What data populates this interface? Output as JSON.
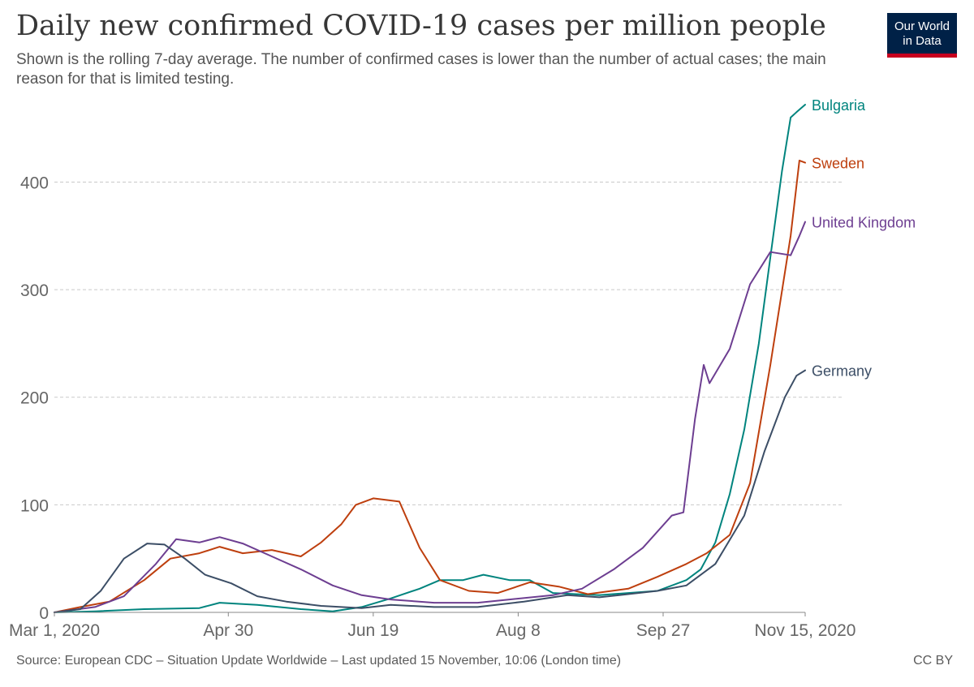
{
  "header": {
    "title": "Daily new confirmed COVID-19 cases per million people",
    "subtitle": "Shown is the rolling 7-day average. The number of confirmed cases is lower than the number of actual cases; the main reason for that is limited testing.",
    "logo_line1": "Our World",
    "logo_line2": "in Data"
  },
  "footer": {
    "source": "Source: European CDC – Situation Update Worldwide – Last updated 15 November, 10:06 (London time)",
    "license": "CC BY"
  },
  "chart_data": {
    "type": "line",
    "title": "Daily new confirmed COVID-19 cases per million people",
    "xlabel": "",
    "ylabel": "",
    "x_range": [
      "2020-03-01",
      "2020-11-15"
    ],
    "ylim": [
      0,
      475
    ],
    "y_ticks": [
      0,
      100,
      200,
      300,
      400
    ],
    "x_ticks": [
      {
        "date": "2020-03-01",
        "label": "Mar 1, 2020"
      },
      {
        "date": "2020-04-30",
        "label": "Apr 30"
      },
      {
        "date": "2020-06-19",
        "label": "Jun 19"
      },
      {
        "date": "2020-08-08",
        "label": "Aug 8"
      },
      {
        "date": "2020-09-27",
        "label": "Sep 27"
      },
      {
        "date": "2020-11-15",
        "label": "Nov 15, 2020"
      }
    ],
    "grid": "horizontal-dashed",
    "legend": "end-of-line labels",
    "series": [
      {
        "name": "Bulgaria",
        "color": "#00847e",
        "points": [
          [
            "2020-03-01",
            0
          ],
          [
            "2020-03-15",
            1
          ],
          [
            "2020-04-01",
            3
          ],
          [
            "2020-04-20",
            4
          ],
          [
            "2020-04-27",
            9
          ],
          [
            "2020-05-10",
            7
          ],
          [
            "2020-05-25",
            3
          ],
          [
            "2020-06-05",
            1
          ],
          [
            "2020-06-15",
            5
          ],
          [
            "2020-06-25",
            13
          ],
          [
            "2020-07-05",
            22
          ],
          [
            "2020-07-12",
            30
          ],
          [
            "2020-07-20",
            30
          ],
          [
            "2020-07-27",
            35
          ],
          [
            "2020-08-05",
            30
          ],
          [
            "2020-08-12",
            30
          ],
          [
            "2020-08-20",
            18
          ],
          [
            "2020-08-28",
            17
          ],
          [
            "2020-09-05",
            16
          ],
          [
            "2020-09-15",
            18
          ],
          [
            "2020-09-25",
            20
          ],
          [
            "2020-10-05",
            30
          ],
          [
            "2020-10-10",
            40
          ],
          [
            "2020-10-15",
            65
          ],
          [
            "2020-10-20",
            110
          ],
          [
            "2020-10-25",
            170
          ],
          [
            "2020-10-30",
            250
          ],
          [
            "2020-11-03",
            330
          ],
          [
            "2020-11-07",
            410
          ],
          [
            "2020-11-10",
            460
          ],
          [
            "2020-11-12",
            465
          ],
          [
            "2020-11-15",
            472
          ]
        ]
      },
      {
        "name": "Sweden",
        "color": "#be3f0e",
        "points": [
          [
            "2020-03-01",
            0
          ],
          [
            "2020-03-10",
            5
          ],
          [
            "2020-03-20",
            10
          ],
          [
            "2020-04-01",
            30
          ],
          [
            "2020-04-10",
            50
          ],
          [
            "2020-04-20",
            55
          ],
          [
            "2020-04-27",
            61
          ],
          [
            "2020-05-05",
            55
          ],
          [
            "2020-05-15",
            58
          ],
          [
            "2020-05-25",
            52
          ],
          [
            "2020-06-01",
            65
          ],
          [
            "2020-06-08",
            82
          ],
          [
            "2020-06-13",
            100
          ],
          [
            "2020-06-19",
            106
          ],
          [
            "2020-06-28",
            103
          ],
          [
            "2020-07-05",
            60
          ],
          [
            "2020-07-12",
            30
          ],
          [
            "2020-07-22",
            20
          ],
          [
            "2020-08-01",
            18
          ],
          [
            "2020-08-12",
            28
          ],
          [
            "2020-08-22",
            24
          ],
          [
            "2020-09-01",
            17
          ],
          [
            "2020-09-15",
            22
          ],
          [
            "2020-09-25",
            33
          ],
          [
            "2020-10-05",
            45
          ],
          [
            "2020-10-12",
            55
          ],
          [
            "2020-10-20",
            72
          ],
          [
            "2020-10-27",
            120
          ],
          [
            "2020-11-03",
            230
          ],
          [
            "2020-11-10",
            350
          ],
          [
            "2020-11-13",
            420
          ],
          [
            "2020-11-15",
            418
          ]
        ]
      },
      {
        "name": "United Kingdom",
        "color": "#6d3e91",
        "points": [
          [
            "2020-03-01",
            0
          ],
          [
            "2020-03-15",
            5
          ],
          [
            "2020-03-25",
            15
          ],
          [
            "2020-04-05",
            45
          ],
          [
            "2020-04-12",
            68
          ],
          [
            "2020-04-20",
            65
          ],
          [
            "2020-04-27",
            70
          ],
          [
            "2020-05-05",
            64
          ],
          [
            "2020-05-15",
            52
          ],
          [
            "2020-05-25",
            40
          ],
          [
            "2020-06-05",
            25
          ],
          [
            "2020-06-15",
            16
          ],
          [
            "2020-06-25",
            12
          ],
          [
            "2020-07-10",
            9
          ],
          [
            "2020-07-25",
            9
          ],
          [
            "2020-08-05",
            12
          ],
          [
            "2020-08-20",
            16
          ],
          [
            "2020-08-30",
            22
          ],
          [
            "2020-09-10",
            40
          ],
          [
            "2020-09-20",
            60
          ],
          [
            "2020-09-30",
            90
          ],
          [
            "2020-10-04",
            93
          ],
          [
            "2020-10-08",
            180
          ],
          [
            "2020-10-11",
            230
          ],
          [
            "2020-10-13",
            213
          ],
          [
            "2020-10-20",
            245
          ],
          [
            "2020-10-27",
            305
          ],
          [
            "2020-11-03",
            335
          ],
          [
            "2020-11-10",
            332
          ],
          [
            "2020-11-13",
            350
          ],
          [
            "2020-11-15",
            363
          ]
        ]
      },
      {
        "name": "Germany",
        "color": "#3c4e66",
        "points": [
          [
            "2020-03-01",
            0
          ],
          [
            "2020-03-10",
            3
          ],
          [
            "2020-03-17",
            20
          ],
          [
            "2020-03-25",
            50
          ],
          [
            "2020-04-02",
            64
          ],
          [
            "2020-04-08",
            63
          ],
          [
            "2020-04-15",
            50
          ],
          [
            "2020-04-22",
            35
          ],
          [
            "2020-05-01",
            27
          ],
          [
            "2020-05-10",
            15
          ],
          [
            "2020-05-20",
            10
          ],
          [
            "2020-06-01",
            6
          ],
          [
            "2020-06-15",
            4
          ],
          [
            "2020-06-25",
            7
          ],
          [
            "2020-07-10",
            5
          ],
          [
            "2020-07-25",
            5
          ],
          [
            "2020-08-10",
            10
          ],
          [
            "2020-08-25",
            16
          ],
          [
            "2020-09-05",
            14
          ],
          [
            "2020-09-15",
            17
          ],
          [
            "2020-09-25",
            20
          ],
          [
            "2020-10-05",
            25
          ],
          [
            "2020-10-15",
            45
          ],
          [
            "2020-10-25",
            90
          ],
          [
            "2020-11-01",
            150
          ],
          [
            "2020-11-08",
            200
          ],
          [
            "2020-11-12",
            220
          ],
          [
            "2020-11-15",
            225
          ]
        ]
      }
    ]
  }
}
